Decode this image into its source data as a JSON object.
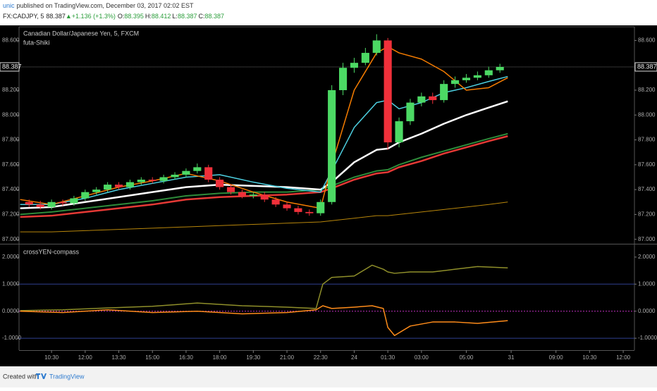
{
  "header": {
    "author": "unic",
    "published": "published on TradingView.com, December 03, 2017 02:02 EST",
    "symbol": "FX:CADJPY, 5",
    "price": "88.387",
    "change": "▲+1.136 (+1.3%)",
    "ohlc": [
      {
        "label": "O:",
        "value": "88.395"
      },
      {
        "label": "H:",
        "value": "88.412"
      },
      {
        "label": "L:",
        "value": "88.387"
      },
      {
        "label": "C:",
        "value": "88.387"
      }
    ]
  },
  "footer": {
    "created": "Created with",
    "brand": "TradingView"
  },
  "chart_data": [
    {
      "type": "candlestick",
      "title": "Canadian Dollar/Japanese Yen, 5, FXCM",
      "x": [
        9.5,
        10,
        10.5,
        11,
        11.5,
        12,
        12.5,
        13,
        13.5,
        14,
        14.5,
        15,
        15.5,
        16,
        16.5,
        17,
        17.5,
        18,
        18.5,
        19,
        19.5,
        20,
        20.5,
        21,
        21.5,
        22,
        22.5,
        23,
        23.5,
        24,
        24.5,
        25,
        25.5,
        26,
        26.5,
        27,
        27.5,
        28,
        28.5,
        29,
        29.5,
        30,
        30.5
      ],
      "open": [
        87.3,
        87.28,
        87.26,
        87.3,
        87.29,
        87.33,
        87.38,
        87.4,
        87.44,
        87.42,
        87.46,
        87.48,
        87.47,
        87.5,
        87.52,
        87.55,
        87.58,
        87.48,
        87.42,
        87.38,
        87.35,
        87.36,
        87.32,
        87.28,
        87.25,
        87.22,
        87.21,
        87.3,
        88.2,
        88.38,
        88.42,
        88.5,
        88.6,
        87.78,
        87.95,
        88.1,
        88.15,
        88.12,
        88.25,
        88.28,
        88.3,
        88.32,
        88.36
      ],
      "high": [
        87.32,
        87.31,
        87.32,
        87.32,
        87.35,
        87.4,
        87.42,
        87.46,
        87.46,
        87.48,
        87.5,
        87.5,
        87.52,
        87.54,
        87.57,
        87.61,
        87.6,
        87.5,
        87.44,
        87.4,
        87.38,
        87.38,
        87.34,
        87.3,
        87.27,
        87.24,
        87.32,
        88.24,
        88.42,
        88.46,
        88.54,
        88.65,
        88.62,
        87.98,
        88.13,
        88.18,
        88.18,
        88.28,
        88.31,
        88.33,
        88.35,
        88.39,
        88.412
      ],
      "low": [
        87.26,
        87.24,
        87.24,
        87.27,
        87.27,
        87.31,
        87.36,
        87.38,
        87.4,
        87.4,
        87.44,
        87.45,
        87.45,
        87.48,
        87.5,
        87.53,
        87.46,
        87.4,
        87.36,
        87.33,
        87.33,
        87.3,
        87.26,
        87.23,
        87.2,
        87.19,
        87.19,
        87.28,
        88.16,
        88.34,
        88.4,
        88.48,
        87.72,
        87.74,
        87.92,
        88.07,
        88.09,
        88.1,
        88.22,
        88.26,
        88.28,
        88.3,
        88.34
      ],
      "close": [
        87.28,
        87.26,
        87.3,
        87.29,
        87.33,
        87.38,
        87.4,
        87.44,
        87.42,
        87.46,
        87.48,
        87.47,
        87.5,
        87.52,
        87.55,
        87.58,
        87.48,
        87.42,
        87.38,
        87.35,
        87.36,
        87.32,
        87.28,
        87.25,
        87.22,
        87.21,
        87.3,
        88.2,
        88.38,
        88.42,
        88.5,
        88.6,
        87.78,
        87.95,
        88.1,
        88.15,
        88.12,
        88.25,
        88.28,
        88.3,
        88.32,
        88.36,
        88.387
      ],
      "up_color": "#4cd964",
      "down_color": "#f0303a",
      "xlim": [
        9.05,
        36.5
      ],
      "ylim": [
        86.97,
        88.71
      ],
      "yticks": [
        {
          "value": 87.0,
          "label": "87.000"
        },
        {
          "value": 87.2,
          "label": "87.200"
        },
        {
          "value": 87.4,
          "label": "87.400"
        },
        {
          "value": 87.6,
          "label": "87.600"
        },
        {
          "value": 87.8,
          "label": "87.800"
        },
        {
          "value": 88.0,
          "label": "88.000"
        },
        {
          "value": 88.2,
          "label": "88.200"
        },
        {
          "value": 88.4,
          "label": "88.400"
        },
        {
          "value": 88.6,
          "label": "88.600"
        }
      ],
      "last_price": {
        "value": 88.387,
        "label": "88.387"
      }
    },
    {
      "type": "line",
      "title": "futa-Shiki",
      "x": [
        9.1,
        10.5,
        12,
        13.5,
        15,
        16.5,
        18,
        19.5,
        21,
        22.5,
        23,
        24,
        25,
        25.5,
        26,
        27,
        28,
        29,
        30,
        30.85
      ],
      "series": [
        {
          "color": "#b8860b",
          "width": 1,
          "values": [
            87.06,
            87.06,
            87.07,
            87.08,
            87.09,
            87.1,
            87.11,
            87.12,
            87.13,
            87.14,
            87.15,
            87.17,
            87.19,
            87.19,
            87.2,
            87.22,
            87.24,
            87.26,
            87.28,
            87.3
          ]
        },
        {
          "color": "#e53935",
          "width": 2.5,
          "values": [
            87.18,
            87.19,
            87.22,
            87.25,
            87.28,
            87.32,
            87.34,
            87.35,
            87.36,
            87.38,
            87.41,
            87.48,
            87.53,
            87.54,
            87.58,
            87.63,
            87.69,
            87.74,
            87.79,
            87.83
          ]
        },
        {
          "color": "#2e8b3a",
          "width": 2,
          "values": [
            87.2,
            87.22,
            87.25,
            87.28,
            87.31,
            87.35,
            87.37,
            87.38,
            87.38,
            87.4,
            87.43,
            87.5,
            87.55,
            87.56,
            87.6,
            87.66,
            87.71,
            87.76,
            87.81,
            87.85
          ]
        },
        {
          "color": "#ffffff",
          "width": 2.5,
          "values": [
            87.25,
            87.26,
            87.3,
            87.34,
            87.38,
            87.42,
            87.44,
            87.43,
            87.42,
            87.4,
            87.46,
            87.62,
            87.72,
            87.73,
            87.78,
            87.85,
            87.93,
            88.0,
            88.06,
            88.11
          ]
        },
        {
          "color": "#4dd0e1",
          "width": 1.5,
          "values": [
            87.28,
            87.28,
            87.33,
            87.4,
            87.45,
            87.5,
            87.52,
            87.46,
            87.41,
            87.38,
            87.55,
            87.9,
            88.1,
            88.12,
            88.05,
            88.1,
            88.18,
            88.22,
            88.27,
            88.31
          ]
        },
        {
          "color": "#f57c00",
          "width": 1.5,
          "values": [
            87.32,
            87.28,
            87.35,
            87.42,
            87.47,
            87.53,
            87.47,
            87.38,
            87.3,
            87.25,
            87.6,
            88.2,
            88.5,
            88.55,
            88.5,
            88.45,
            88.35,
            88.2,
            88.22,
            88.3
          ]
        }
      ]
    },
    {
      "type": "line",
      "title": "crossYEN-compass",
      "x": [
        9.1,
        11,
        13,
        15,
        17,
        19,
        21,
        22.3,
        22.6,
        23,
        24,
        24.8,
        25.3,
        25.5,
        25.8,
        26.5,
        27.5,
        28.5,
        29.5,
        30.85
      ],
      "series": [
        {
          "color": "#8f8f2a",
          "width": 1.5,
          "values": [
            0.02,
            0.05,
            0.12,
            0.18,
            0.3,
            0.2,
            0.15,
            0.1,
            1.0,
            1.25,
            1.3,
            1.7,
            1.55,
            1.45,
            1.4,
            1.45,
            1.45,
            1.55,
            1.65,
            1.6
          ]
        },
        {
          "color": "#ff8c1a",
          "width": 1.5,
          "values": [
            0.0,
            -0.05,
            0.05,
            -0.05,
            0.0,
            -0.1,
            -0.05,
            0.05,
            0.2,
            0.1,
            0.15,
            0.2,
            0.1,
            -0.6,
            -0.9,
            -0.55,
            -0.4,
            -0.4,
            -0.45,
            -0.35
          ]
        }
      ],
      "levels": [
        {
          "value": 1,
          "color": "#2f3f8f"
        },
        {
          "value": 0,
          "color": "#c030c0",
          "dash": true
        },
        {
          "value": -1,
          "color": "#2f3f8f"
        }
      ],
      "xlim": [
        9.05,
        36.5
      ],
      "ylim": [
        -1.44,
        2.44
      ],
      "yticks": [
        {
          "value": 2,
          "label": "2.0000"
        },
        {
          "value": 1,
          "label": "1.0000"
        },
        {
          "value": 0,
          "label": "0.0000"
        },
        {
          "value": -1,
          "label": "-1.0000"
        }
      ],
      "xticks": [
        {
          "value": 10.5,
          "label": "10:30"
        },
        {
          "value": 12,
          "label": "12:00"
        },
        {
          "value": 13.5,
          "label": "13:30"
        },
        {
          "value": 15,
          "label": "15:00"
        },
        {
          "value": 16.5,
          "label": "16:30"
        },
        {
          "value": 18,
          "label": "18:00"
        },
        {
          "value": 19.5,
          "label": "19:30"
        },
        {
          "value": 21,
          "label": "21:00"
        },
        {
          "value": 22.5,
          "label": "22:30"
        },
        24,
        {
          "value": 25.5,
          "label": "01:30"
        },
        {
          "value": 27,
          "label": "03:00"
        },
        {
          "value": 29,
          "label": "05:00"
        },
        31,
        {
          "value": 33,
          "label": "09:00"
        },
        {
          "value": 34.5,
          "label": "10:30"
        },
        {
          "value": 36,
          "label": "12:00"
        }
      ]
    }
  ]
}
